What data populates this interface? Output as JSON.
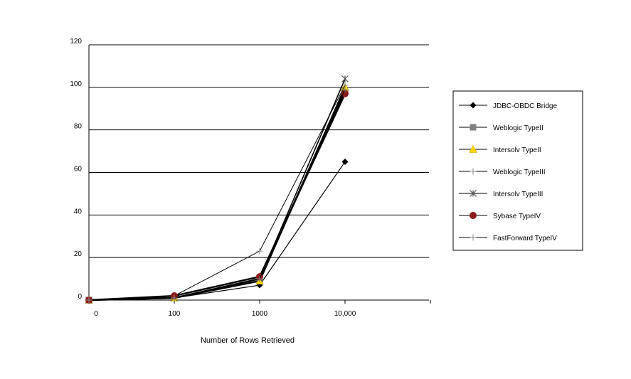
{
  "chart_data": {
    "type": "line",
    "categories": [
      "0",
      "100",
      "1000",
      "10,000"
    ],
    "xlabel": "Number of Rows Retrieved",
    "ylabel": "",
    "ylim": [
      0,
      120
    ],
    "yticks": [
      0,
      20,
      40,
      60,
      80,
      100,
      120
    ],
    "grid": true,
    "legend_position": "right",
    "series": [
      {
        "name": "JDBC-OBDC Bridge",
        "values": [
          0,
          1,
          7,
          65
        ],
        "color": "#000000",
        "marker": "diamond"
      },
      {
        "name": "Weblogic TypeII",
        "values": [
          0,
          1,
          10,
          98
        ],
        "color": "#808080",
        "marker": "square"
      },
      {
        "name": "Intersolv TypeII",
        "values": [
          0,
          1,
          9,
          100
        ],
        "color": "#ffd800",
        "marker": "triangle"
      },
      {
        "name": "Weblogic TypeIII",
        "values": [
          0,
          2,
          23,
          101
        ],
        "color": "#000000",
        "marker": "plus"
      },
      {
        "name": "Intersolv TypeIII",
        "values": [
          0,
          1,
          10,
          104
        ],
        "color": "#000000",
        "marker": "asterisk"
      },
      {
        "name": "Sybase TypeIV",
        "values": [
          0,
          2,
          11,
          97
        ],
        "color": "#8b1a1a",
        "marker": "circle"
      },
      {
        "name": "FastForward TypeIV",
        "values": [
          0,
          1,
          10,
          99
        ],
        "color": "#000000",
        "marker": "plus"
      }
    ]
  }
}
